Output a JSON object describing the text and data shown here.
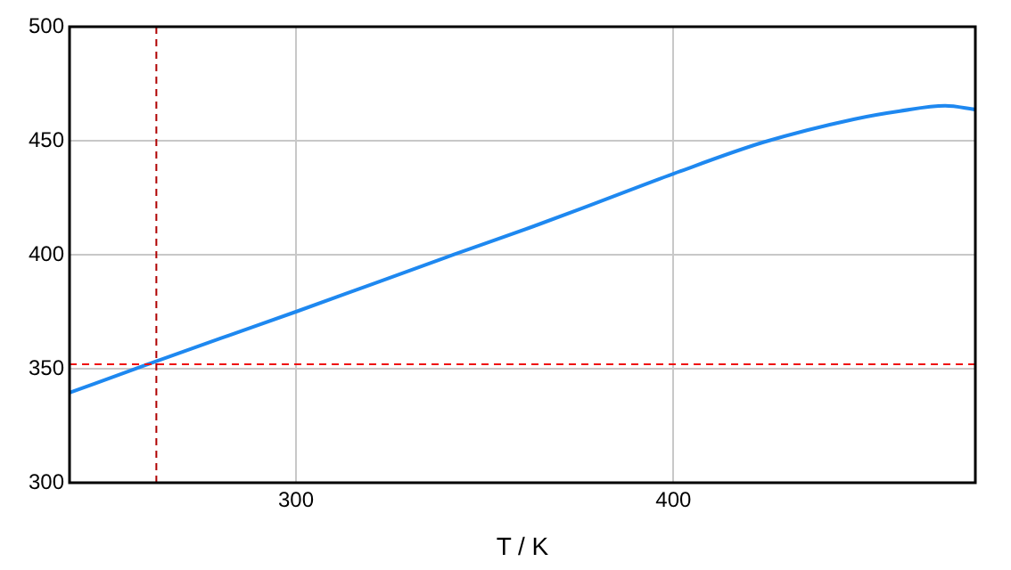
{
  "chart_data": {
    "type": "line",
    "xlabel": "T / K",
    "xlim": [
      240,
      480
    ],
    "xticks": [
      300,
      400
    ],
    "ylim": [
      300,
      500
    ],
    "yticks": [
      300,
      350,
      400,
      450,
      500
    ],
    "grid": true,
    "legend": false,
    "marker": "none",
    "line_style": "solid",
    "series": [
      {
        "color": "#1e88f0",
        "x": [
          240,
          260,
          280,
          300,
          320,
          340,
          363,
          380,
          400,
          424,
          448,
          460,
          472,
          480
        ],
        "values": [
          339.5,
          351.5,
          363.3,
          375,
          387,
          399,
          412.5,
          423,
          435.5,
          449.4,
          459.5,
          463,
          465.3,
          463.7
        ]
      }
    ],
    "ref_lines": [
      {
        "axis": "y",
        "value": 352,
        "color": "#ee1111",
        "line_style": "dashed"
      },
      {
        "axis": "x",
        "value": 263,
        "color": "#b00000",
        "line_style": "dashed"
      }
    ]
  }
}
